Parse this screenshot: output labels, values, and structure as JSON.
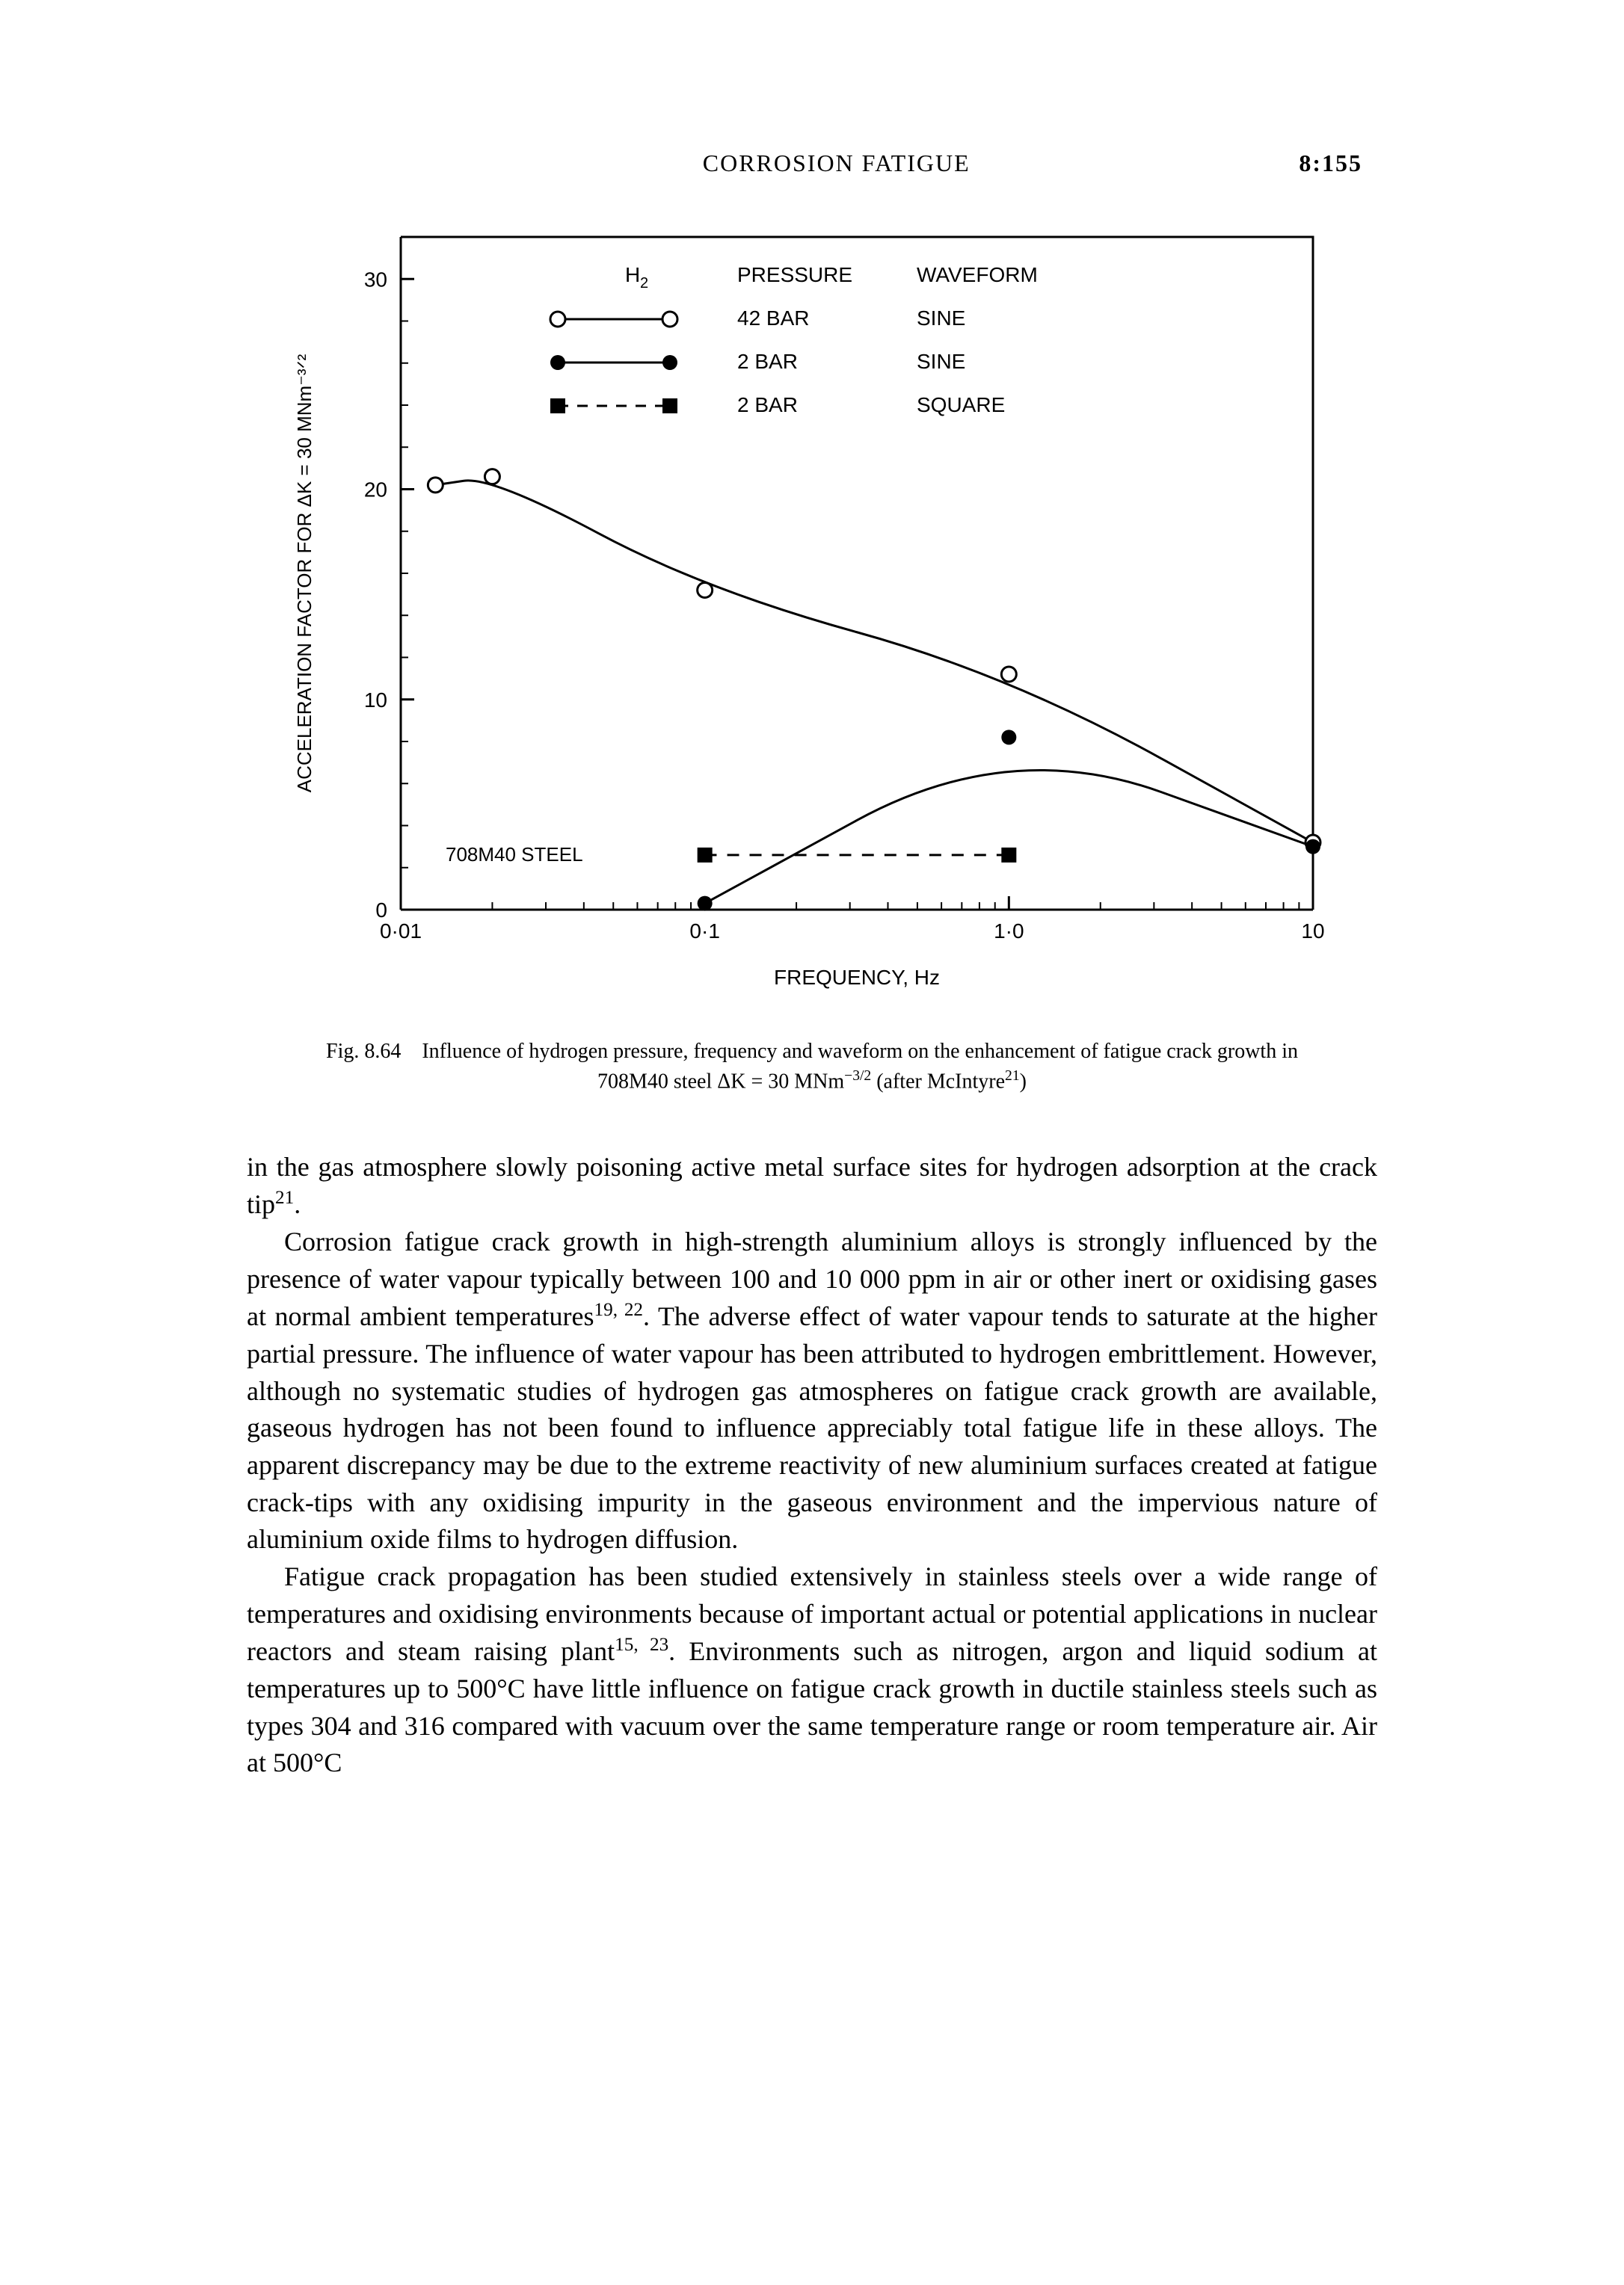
{
  "header": {
    "running_head": "CORROSION FATIGUE",
    "page_number": "8:155"
  },
  "chart": {
    "type": "line",
    "background_color": "#ffffff",
    "axis_color": "#000000",
    "line_color": "#000000",
    "line_width": 3,
    "marker_size": 10,
    "x_axis": {
      "label": "FREQUENCY, Hz",
      "scale": "log",
      "min": 0.01,
      "max": 10,
      "ticks": [
        0.01,
        0.1,
        1.0,
        10
      ],
      "tick_labels": [
        "0·01",
        "0·1",
        "1·0",
        "10"
      ]
    },
    "y_axis": {
      "label": "ACCELERATION  FACTOR  FOR  ΔK = 30 MNm⁻³ᐟ²",
      "scale": "linear",
      "min": 0,
      "max": 32,
      "ticks": [
        0,
        10,
        20,
        30
      ],
      "tick_labels": [
        "0",
        "10",
        "20",
        "30"
      ]
    },
    "annotation": "708M40 STEEL",
    "legend": {
      "header": [
        "H₂",
        "PRESSURE",
        "WAVEFORM"
      ],
      "rows": [
        {
          "marker": "open-circle",
          "dash": "solid",
          "pressure": "42 BAR",
          "waveform": "SINE"
        },
        {
          "marker": "filled-circle",
          "dash": "solid",
          "pressure": "2 BAR",
          "waveform": "SINE"
        },
        {
          "marker": "filled-square",
          "dash": "dashed",
          "pressure": "2 BAR",
          "waveform": "SQUARE"
        }
      ]
    },
    "series": [
      {
        "name": "42bar-sine",
        "marker": "open-circle",
        "dash": "solid",
        "points": [
          {
            "x": 0.013,
            "y": 20.2
          },
          {
            "x": 0.02,
            "y": 20.6
          },
          {
            "x": 0.1,
            "y": 15.2
          },
          {
            "x": 1.0,
            "y": 11.2
          },
          {
            "x": 10,
            "y": 3.2
          }
        ]
      },
      {
        "name": "2bar-sine",
        "marker": "filled-circle",
        "dash": "solid",
        "points": [
          {
            "x": 0.1,
            "y": 0.3
          },
          {
            "x": 1.0,
            "y": 8.2
          },
          {
            "x": 10,
            "y": 3.0
          }
        ]
      },
      {
        "name": "2bar-square",
        "marker": "filled-square",
        "dash": "dashed",
        "points": [
          {
            "x": 0.1,
            "y": 2.6
          },
          {
            "x": 1.0,
            "y": 2.6
          }
        ]
      }
    ]
  },
  "caption": {
    "lead": "Fig. 8.64",
    "text_1": "Influence of hydrogen pressure, frequency and waveform on the enhancement of fatigue crack growth in 708M40 steel ΔK = 30 MNm",
    "sup_1": "−3/2",
    "text_2": " (after McIntyre",
    "sup_2": "21",
    "text_3": ")"
  },
  "body": {
    "p1_a": "in the gas atmosphere slowly poisoning active metal surface sites for hydrogen adsorption at the crack tip",
    "p1_sup": "21",
    "p1_b": ".",
    "p2_a": "Corrosion fatigue crack growth in high-strength aluminium alloys is strongly influenced by the presence of water vapour typically between 100 and 10 000 ppm in air or other inert or oxidising gases at normal ambient temperatures",
    "p2_sup": "19, 22",
    "p2_b": ". The adverse effect of water vapour tends to saturate at the higher partial pressure. The influence of water vapour has been attributed to hydrogen embrittlement. However, although no systematic studies of hydrogen gas atmospheres on fatigue crack growth are available, gaseous hydrogen has not been found to influence appreciably total fatigue life in these alloys. The apparent discrepancy may be due to the extreme reactivity of new aluminium surfaces created at fatigue crack-tips with any oxidising impurity in the gaseous environment and the impervious nature of aluminium oxide films to hydrogen diffusion.",
    "p3_a": "Fatigue crack propagation has been studied extensively in stainless steels over a wide range of temperatures and oxidising environments because of important actual or potential applications in nuclear reactors and steam raising plant",
    "p3_sup": "15, 23",
    "p3_b": ". Environments such as nitrogen, argon and liquid sodium at temperatures up to 500°C have little influence on fatigue crack growth in ductile stainless steels such as types 304 and 316 compared with vacuum over the same temperature range or room temperature air. Air at 500°C"
  }
}
